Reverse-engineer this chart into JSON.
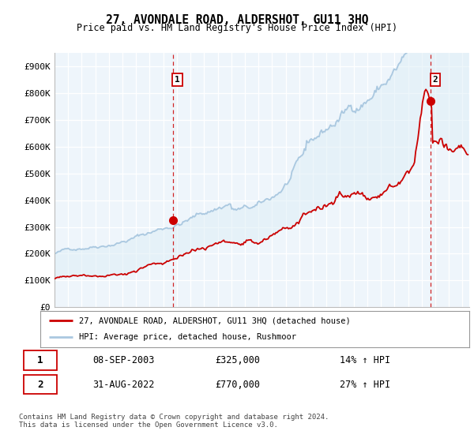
{
  "title": "27, AVONDALE ROAD, ALDERSHOT, GU11 3HQ",
  "subtitle": "Price paid vs. HM Land Registry's House Price Index (HPI)",
  "ylabel_ticks": [
    "£0",
    "£100K",
    "£200K",
    "£300K",
    "£400K",
    "£500K",
    "£600K",
    "£700K",
    "£800K",
    "£900K"
  ],
  "ytick_values": [
    0,
    100000,
    200000,
    300000,
    400000,
    500000,
    600000,
    700000,
    800000,
    900000
  ],
  "ylim": [
    0,
    950000
  ],
  "xlim_start": 1995.0,
  "xlim_end": 2025.5,
  "hpi_color": "#aac8e0",
  "price_color": "#cc0000",
  "fill_color": "#ddeef7",
  "dashed_line_color": "#cc0000",
  "marker1_date": 2003.69,
  "marker1_price": 325000,
  "marker2_date": 2022.67,
  "marker2_price": 770000,
  "legend_house_label": "27, AVONDALE ROAD, ALDERSHOT, GU11 3HQ (detached house)",
  "legend_hpi_label": "HPI: Average price, detached house, Rushmoor",
  "table_row1": [
    "1",
    "08-SEP-2003",
    "£325,000",
    "14% ↑ HPI"
  ],
  "table_row2": [
    "2",
    "31-AUG-2022",
    "£770,000",
    "27% ↑ HPI"
  ],
  "footnote": "Contains HM Land Registry data © Crown copyright and database right 2024.\nThis data is licensed under the Open Government Licence v3.0.",
  "background_color": "#ffffff",
  "plot_bg_color": "#eef5fb",
  "grid_color": "#ffffff"
}
